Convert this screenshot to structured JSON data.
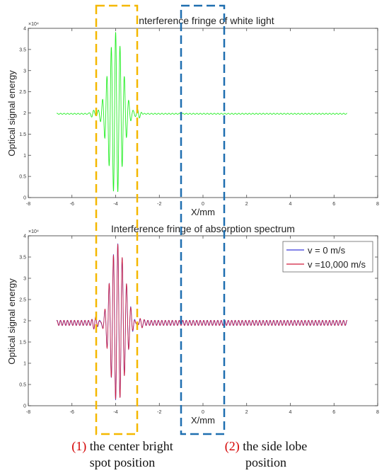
{
  "chart_data": [
    {
      "type": "line",
      "title": "Interference fringe of white light",
      "xlabel": "X/mm",
      "ylabel": "Optical signal energy",
      "y_exponent_label": "×10⁴",
      "xlim": [
        -8,
        8
      ],
      "ylim": [
        0,
        40000
      ],
      "xticks": [
        -8,
        -6,
        -4,
        -2,
        0,
        2,
        4,
        6,
        8
      ],
      "yticks": [
        0,
        0.5,
        1,
        1.5,
        2,
        2.5,
        3,
        3.5,
        4
      ],
      "grid": false,
      "series": [
        {
          "color": "#22ee22",
          "x_range": [
            -6.7,
            6.6
          ],
          "baseline": 19800,
          "peak_center_x": -4.0,
          "max": 39400,
          "min": 500
        }
      ]
    },
    {
      "type": "line",
      "title": "Interference fringe of absorption spectrum",
      "xlabel": "X/mm",
      "ylabel": "Optical signal energy",
      "y_exponent_label": "×10⁴",
      "xlim": [
        -8,
        8
      ],
      "ylim": [
        0,
        40000
      ],
      "xticks": [
        -8,
        -6,
        -4,
        -2,
        0,
        2,
        4,
        6,
        8
      ],
      "yticks": [
        0,
        0.5,
        1,
        1.5,
        2,
        2.5,
        3,
        3.5,
        4
      ],
      "grid": false,
      "legend": "top-right",
      "series": [
        {
          "name": "v = 0 m/s",
          "color": "#3b3bd9",
          "x_range": [
            -6.7,
            6.6
          ],
          "baseline": 19500,
          "peak_center_x": -3.9,
          "max": 38600,
          "min": 400
        },
        {
          "name": "v =10,000 m/s",
          "color": "#d01c3c",
          "x_range": [
            -6.7,
            6.6
          ],
          "baseline": 19500,
          "peak_center_x": -3.9,
          "max": 38600,
          "min": 400
        }
      ]
    }
  ],
  "annotations": {
    "box1": {
      "color": "#f5b800"
    },
    "box2": {
      "color": "#1f6fb0"
    },
    "caption1": {
      "number": "(1)",
      "line1": "the center bright",
      "line2": "spot position"
    },
    "caption2": {
      "number": "(2)",
      "line1": "the side lobe",
      "line2": "position"
    }
  }
}
